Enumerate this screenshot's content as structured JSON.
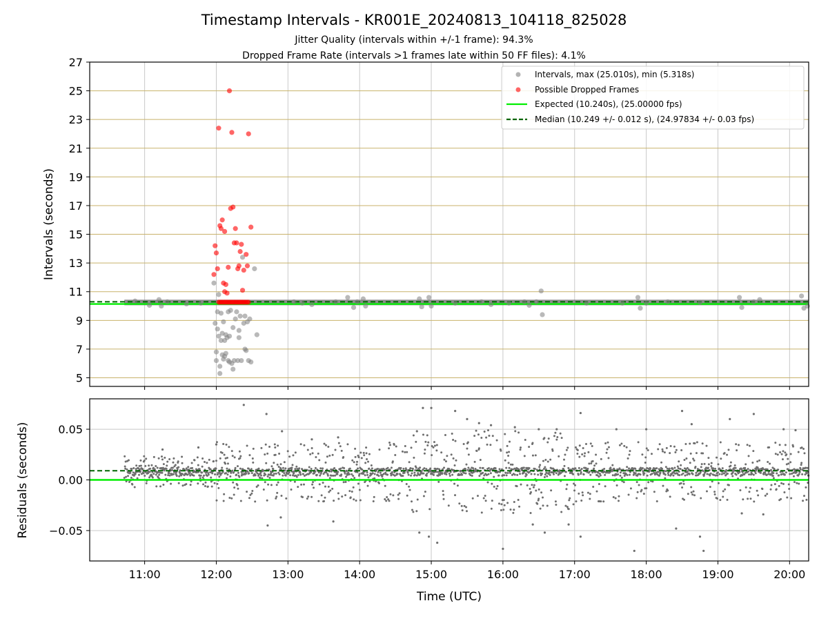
{
  "chart_data": [
    {
      "panel": "intervals",
      "type": "scatter",
      "title": "Timestamp Intervals - KR001E_20240813_104118_825028",
      "subtitle_lines": [
        "Jitter Quality (intervals within +/-1 frame): 94.3%",
        "Dropped Frame Rate (intervals >1 frames late within 50 FF files): 4.1%"
      ],
      "ylabel": "Intervals (seconds)",
      "xlim": [
        "10:14",
        "20:16"
      ],
      "ylim": [
        4.4,
        27
      ],
      "yticks": [
        5,
        7,
        9,
        11,
        13,
        15,
        17,
        19,
        21,
        23,
        25,
        27
      ],
      "grid_y_color": "#c8b26a",
      "grid_x_color": "#c8c8c8",
      "legend_position": "top-right",
      "legend": [
        {
          "label": "Intervals, max (25.010s), min (5.318s)",
          "marker": "circle",
          "color": "#808080"
        },
        {
          "label": "Possible Dropped Frames",
          "marker": "circle",
          "color": "#ff0000"
        },
        {
          "label": "Expected (10.240s), (25.00000 fps)",
          "marker": "solid-line",
          "color": "#00ee00"
        },
        {
          "label": "Median (10.249 +/- 0.012 s), (24.97834 +/- 0.03 fps)",
          "marker": "dashed-line",
          "color": "#006400"
        }
      ],
      "expected_interval": 10.24,
      "median_interval": 10.249,
      "main_band": {
        "start": "10:43",
        "end": "20:16",
        "value": 10.249,
        "color": "#808080"
      },
      "dropped_run": {
        "start": "12:02",
        "end": "12:27",
        "value": 10.27,
        "color": "#ff0000"
      },
      "series": [
        {
          "name": "Intervals, max (25.010s), min (5.318s)",
          "color": "#808080",
          "points": [
            [
              "10:52",
              10.35
            ],
            [
              "11:04",
              10.05
            ],
            [
              "11:12",
              10.45
            ],
            [
              "11:14",
              10.0
            ],
            [
              "11:19",
              10.3
            ],
            [
              "11:35",
              10.15
            ],
            [
              "11:47",
              10.2
            ],
            [
              "11:58",
              11.6
            ],
            [
              "11:59",
              8.8
            ],
            [
              "12:00",
              6.2
            ],
            [
              "12:00",
              6.8
            ],
            [
              "12:01",
              8.4
            ],
            [
              "12:01",
              9.6
            ],
            [
              "12:02",
              7.9
            ],
            [
              "12:02",
              10.8
            ],
            [
              "12:03",
              5.3
            ],
            [
              "12:03",
              5.8
            ],
            [
              "12:04",
              7.6
            ],
            [
              "12:04",
              9.5
            ],
            [
              "12:05",
              6.6
            ],
            [
              "12:05",
              8.1
            ],
            [
              "12:06",
              6.3
            ],
            [
              "12:06",
              8.9
            ],
            [
              "12:07",
              6.5
            ],
            [
              "12:07",
              7.6
            ],
            [
              "12:08",
              6.7
            ],
            [
              "12:08",
              8.0
            ],
            [
              "12:09",
              7.8
            ],
            [
              "12:10",
              6.2
            ],
            [
              "12:10",
              9.6
            ],
            [
              "12:11",
              6.1
            ],
            [
              "12:11",
              7.9
            ],
            [
              "12:12",
              9.7
            ],
            [
              "12:13",
              6.0
            ],
            [
              "12:14",
              5.6
            ],
            [
              "12:14",
              8.5
            ],
            [
              "12:15",
              6.2
            ],
            [
              "12:16",
              9.1
            ],
            [
              "12:17",
              9.6
            ],
            [
              "12:18",
              6.2
            ],
            [
              "12:19",
              7.8
            ],
            [
              "12:19",
              8.3
            ],
            [
              "12:20",
              9.3
            ],
            [
              "12:21",
              6.2
            ],
            [
              "12:22",
              13.4
            ],
            [
              "12:23",
              8.8
            ],
            [
              "12:24",
              7.0
            ],
            [
              "12:24",
              9.3
            ],
            [
              "12:25",
              6.9
            ],
            [
              "12:26",
              8.9
            ],
            [
              "12:27",
              6.2
            ],
            [
              "12:28",
              9.1
            ],
            [
              "12:29",
              6.1
            ],
            [
              "12:32",
              12.6
            ],
            [
              "12:34",
              8.0
            ],
            [
              "13:05",
              10.3
            ],
            [
              "13:12",
              10.2
            ],
            [
              "13:20",
              10.1
            ],
            [
              "13:40",
              10.3
            ],
            [
              "13:50",
              10.6
            ],
            [
              "13:55",
              9.9
            ],
            [
              "13:58",
              10.3
            ],
            [
              "14:03",
              10.5
            ],
            [
              "14:05",
              10.0
            ],
            [
              "14:50",
              10.5
            ],
            [
              "14:52",
              9.95
            ],
            [
              "14:58",
              10.6
            ],
            [
              "15:00",
              10.0
            ],
            [
              "15:20",
              10.2
            ],
            [
              "15:42",
              10.3
            ],
            [
              "15:50",
              10.1
            ],
            [
              "16:05",
              10.2
            ],
            [
              "16:18",
              10.3
            ],
            [
              "16:22",
              10.05
            ],
            [
              "16:28",
              10.3
            ],
            [
              "16:32",
              11.05
            ],
            [
              "16:33",
              9.4
            ],
            [
              "17:10",
              10.2
            ],
            [
              "17:40",
              10.2
            ],
            [
              "17:53",
              10.6
            ],
            [
              "17:55",
              9.85
            ],
            [
              "18:00",
              10.2
            ],
            [
              "18:18",
              10.3
            ],
            [
              "18:45",
              10.25
            ],
            [
              "19:18",
              10.6
            ],
            [
              "19:20",
              9.9
            ],
            [
              "19:30",
              10.3
            ],
            [
              "19:35",
              10.45
            ],
            [
              "20:10",
              10.7
            ],
            [
              "20:12",
              9.85
            ],
            [
              "20:15",
              10.0
            ]
          ]
        },
        {
          "name": "Possible Dropped Frames",
          "color": "#ff0000",
          "points": [
            [
              "11:58",
              12.2
            ],
            [
              "11:59",
              14.2
            ],
            [
              "12:00",
              13.7
            ],
            [
              "12:01",
              12.6
            ],
            [
              "12:02",
              22.4
            ],
            [
              "12:03",
              15.6
            ],
            [
              "12:04",
              15.4
            ],
            [
              "12:05",
              16.0
            ],
            [
              "12:06",
              11.6
            ],
            [
              "12:07",
              15.2
            ],
            [
              "12:07",
              11.0
            ],
            [
              "12:08",
              11.5
            ],
            [
              "12:09",
              10.9
            ],
            [
              "12:10",
              12.7
            ],
            [
              "12:11",
              25.0
            ],
            [
              "12:12",
              16.8
            ],
            [
              "12:13",
              22.1
            ],
            [
              "12:14",
              16.9
            ],
            [
              "12:15",
              14.4
            ],
            [
              "12:16",
              15.4
            ],
            [
              "12:17",
              14.4
            ],
            [
              "12:18",
              12.6
            ],
            [
              "12:19",
              12.8
            ],
            [
              "12:20",
              13.8
            ],
            [
              "12:21",
              14.3
            ],
            [
              "12:22",
              11.1
            ],
            [
              "12:23",
              12.5
            ],
            [
              "12:25",
              13.6
            ],
            [
              "12:26",
              12.8
            ],
            [
              "12:27",
              22.0
            ],
            [
              "12:29",
              15.5
            ]
          ]
        }
      ]
    },
    {
      "panel": "residuals",
      "type": "scatter",
      "xlabel": "Time (UTC)",
      "ylabel": "Residuals (seconds)",
      "ylim": [
        -0.08,
        0.08
      ],
      "yticks": [
        -0.05,
        0.0,
        0.05
      ],
      "ytick_labels": [
        "−0.05",
        "0.00",
        "0.05"
      ],
      "xticks": [
        "11:00",
        "12:00",
        "13:00",
        "14:00",
        "15:00",
        "16:00",
        "17:00",
        "18:00",
        "19:00",
        "20:00"
      ],
      "expected_residual": 0.0,
      "median_residual": 0.009,
      "residual_band": {
        "start": "10:43",
        "end": "20:16",
        "center": 0.008,
        "typical_spread": 0.004
      },
      "notable_points": [
        [
          "12:23",
          0.074
        ],
        [
          "12:42",
          0.065
        ],
        [
          "12:55",
          0.048
        ],
        [
          "12:54",
          -0.037
        ],
        [
          "12:43",
          -0.045
        ],
        [
          "13:20",
          0.04
        ],
        [
          "13:38",
          -0.041
        ],
        [
          "13:42",
          0.042
        ],
        [
          "14:48",
          0.048
        ],
        [
          "14:50",
          -0.052
        ],
        [
          "14:58",
          -0.056
        ],
        [
          "14:53",
          0.071
        ],
        [
          "15:00",
          0.071
        ],
        [
          "15:05",
          -0.062
        ],
        [
          "15:20",
          0.068
        ],
        [
          "15:30",
          0.06
        ],
        [
          "15:40",
          0.056
        ],
        [
          "15:50",
          0.054
        ],
        [
          "16:00",
          -0.068
        ],
        [
          "16:10",
          0.052
        ],
        [
          "16:25",
          -0.044
        ],
        [
          "16:30",
          0.05
        ],
        [
          "16:35",
          -0.052
        ],
        [
          "16:45",
          0.05
        ],
        [
          "16:55",
          -0.044
        ],
        [
          "17:05",
          0.066
        ],
        [
          "17:05",
          -0.056
        ],
        [
          "17:35",
          0.05
        ],
        [
          "17:50",
          -0.07
        ],
        [
          "18:00",
          0.05
        ],
        [
          "18:25",
          -0.048
        ],
        [
          "18:30",
          0.068
        ],
        [
          "18:38",
          0.055
        ],
        [
          "18:45",
          -0.056
        ],
        [
          "18:48",
          -0.07
        ],
        [
          "19:10",
          0.06
        ],
        [
          "19:20",
          -0.033
        ],
        [
          "19:30",
          0.065
        ],
        [
          "19:38",
          -0.034
        ],
        [
          "19:55",
          0.05
        ],
        [
          "20:05",
          0.049
        ],
        [
          "12:00",
          0.035
        ],
        [
          "11:45",
          0.032
        ],
        [
          "11:15",
          0.03
        ]
      ]
    }
  ]
}
